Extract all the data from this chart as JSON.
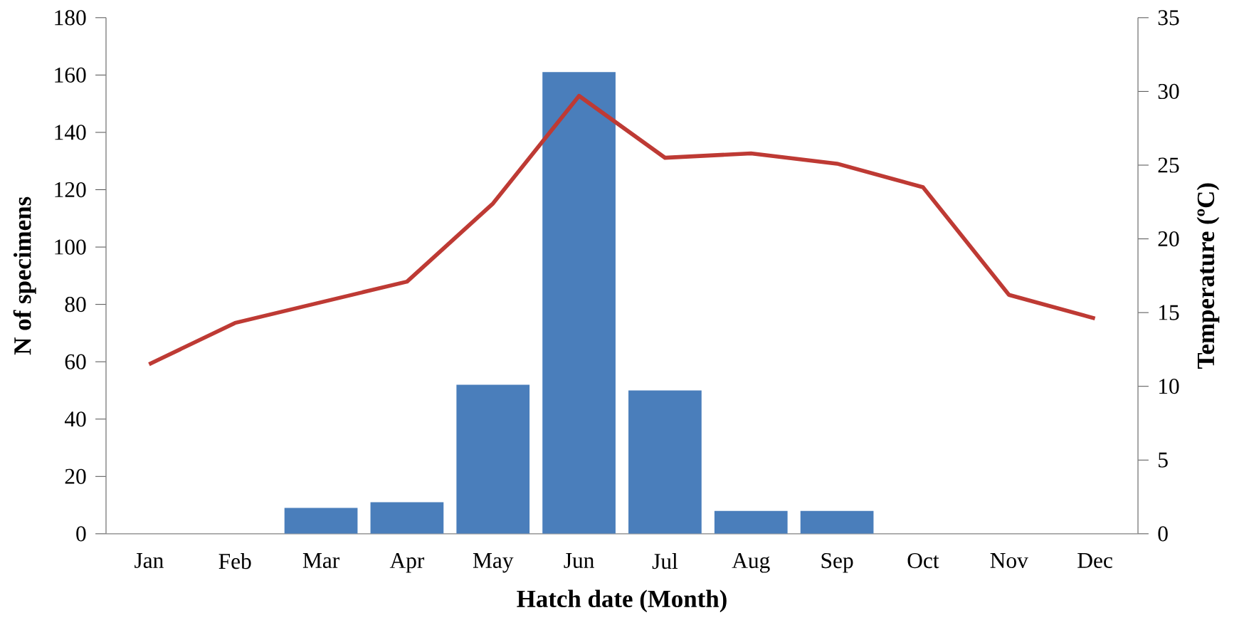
{
  "chart_data": {
    "type": "bar",
    "xlabel": "Hatch date (Month)",
    "ylabel": "N of specimens",
    "y2label": "Temperature (ºC)",
    "categories": [
      "Jan",
      "Feb",
      "Mar",
      "Apr",
      "May",
      "Jun",
      "Jul",
      "Aug",
      "Sep",
      "Oct",
      "Nov",
      "Dec"
    ],
    "series": [
      {
        "color": "#4a7ebb",
        "values": [
          0,
          0,
          9,
          11,
          52,
          161,
          50,
          8,
          8,
          0,
          0,
          0
        ]
      },
      {
        "type": "line",
        "axis": "y2",
        "color": "#be3a34",
        "values": [
          11.5,
          14.3,
          15.7,
          17.1,
          22.4,
          29.7,
          25.5,
          25.8,
          25.1,
          23.5,
          16.2,
          14.6
        ]
      }
    ],
    "ylim": [
      0,
      180
    ],
    "yticks": [
      0,
      20,
      40,
      60,
      80,
      100,
      120,
      140,
      160,
      180
    ],
    "y2lim": [
      0,
      35
    ],
    "y2ticks": [
      0,
      5,
      10,
      15,
      20,
      25,
      30,
      35
    ],
    "grid": false,
    "legend": false,
    "marker": "none",
    "line_style": "solid"
  }
}
